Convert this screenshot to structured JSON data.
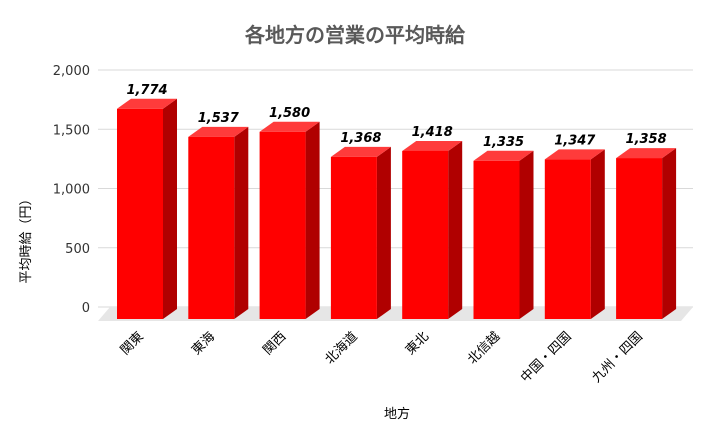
{
  "chart_data": {
    "type": "bar",
    "title": "各地方の営業の平均時給",
    "xlabel": "地方",
    "ylabel": "平均時給（円）",
    "categories": [
      "関東",
      "東海",
      "関西",
      "北海道",
      "東北",
      "北信越",
      "中国・四国",
      "九州・四国"
    ],
    "values": [
      1774,
      1537,
      1580,
      1368,
      1418,
      1335,
      1347,
      1358
    ],
    "data_labels": [
      "1,774",
      "1,537",
      "1,580",
      "1,368",
      "1,418",
      "1,335",
      "1,347",
      "1,358"
    ],
    "ylim": [
      0,
      2000
    ],
    "yticks": [
      0,
      500,
      1000,
      1500,
      2000
    ],
    "ytick_labels": [
      "0",
      "500",
      "1,000",
      "1,500",
      "2,000"
    ],
    "grid": true,
    "style": "3d-column",
    "colors": {
      "front": "#ff0000",
      "side": "#b00000",
      "top": "#ff3b3b",
      "floor": "#e6e6e6",
      "grid": "#d9d9d9"
    }
  }
}
